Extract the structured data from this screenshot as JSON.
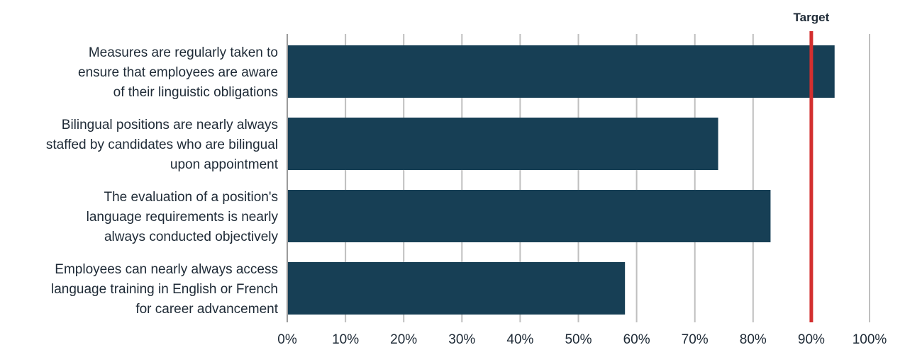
{
  "chart_data": {
    "type": "bar",
    "orientation": "horizontal",
    "categories": [
      [
        "Measures are regularly taken to",
        "ensure that employees are aware",
        "of their linguistic obligations"
      ],
      [
        "Bilingual positions are nearly always",
        "staffed by candidates who are bilingual",
        "upon appointment"
      ],
      [
        "The evaluation of a position's",
        "language requirements is nearly",
        "always conducted objectively"
      ],
      [
        "Employees can nearly always access",
        "language training in English or French",
        "for career advancement"
      ]
    ],
    "values": [
      94,
      74,
      83,
      58
    ],
    "xlim": [
      0,
      100
    ],
    "xticks": [
      0,
      10,
      20,
      30,
      40,
      50,
      60,
      70,
      80,
      90,
      100
    ],
    "xtick_labels": [
      "0%",
      "10%",
      "20%",
      "30%",
      "40%",
      "50%",
      "60%",
      "70%",
      "80%",
      "90%",
      "100%"
    ],
    "grid": true,
    "target": {
      "label": "Target",
      "value": 90
    },
    "colors": {
      "bar": "#173f55",
      "target": "#d32f2f",
      "grid": "#bfbfbf"
    }
  }
}
